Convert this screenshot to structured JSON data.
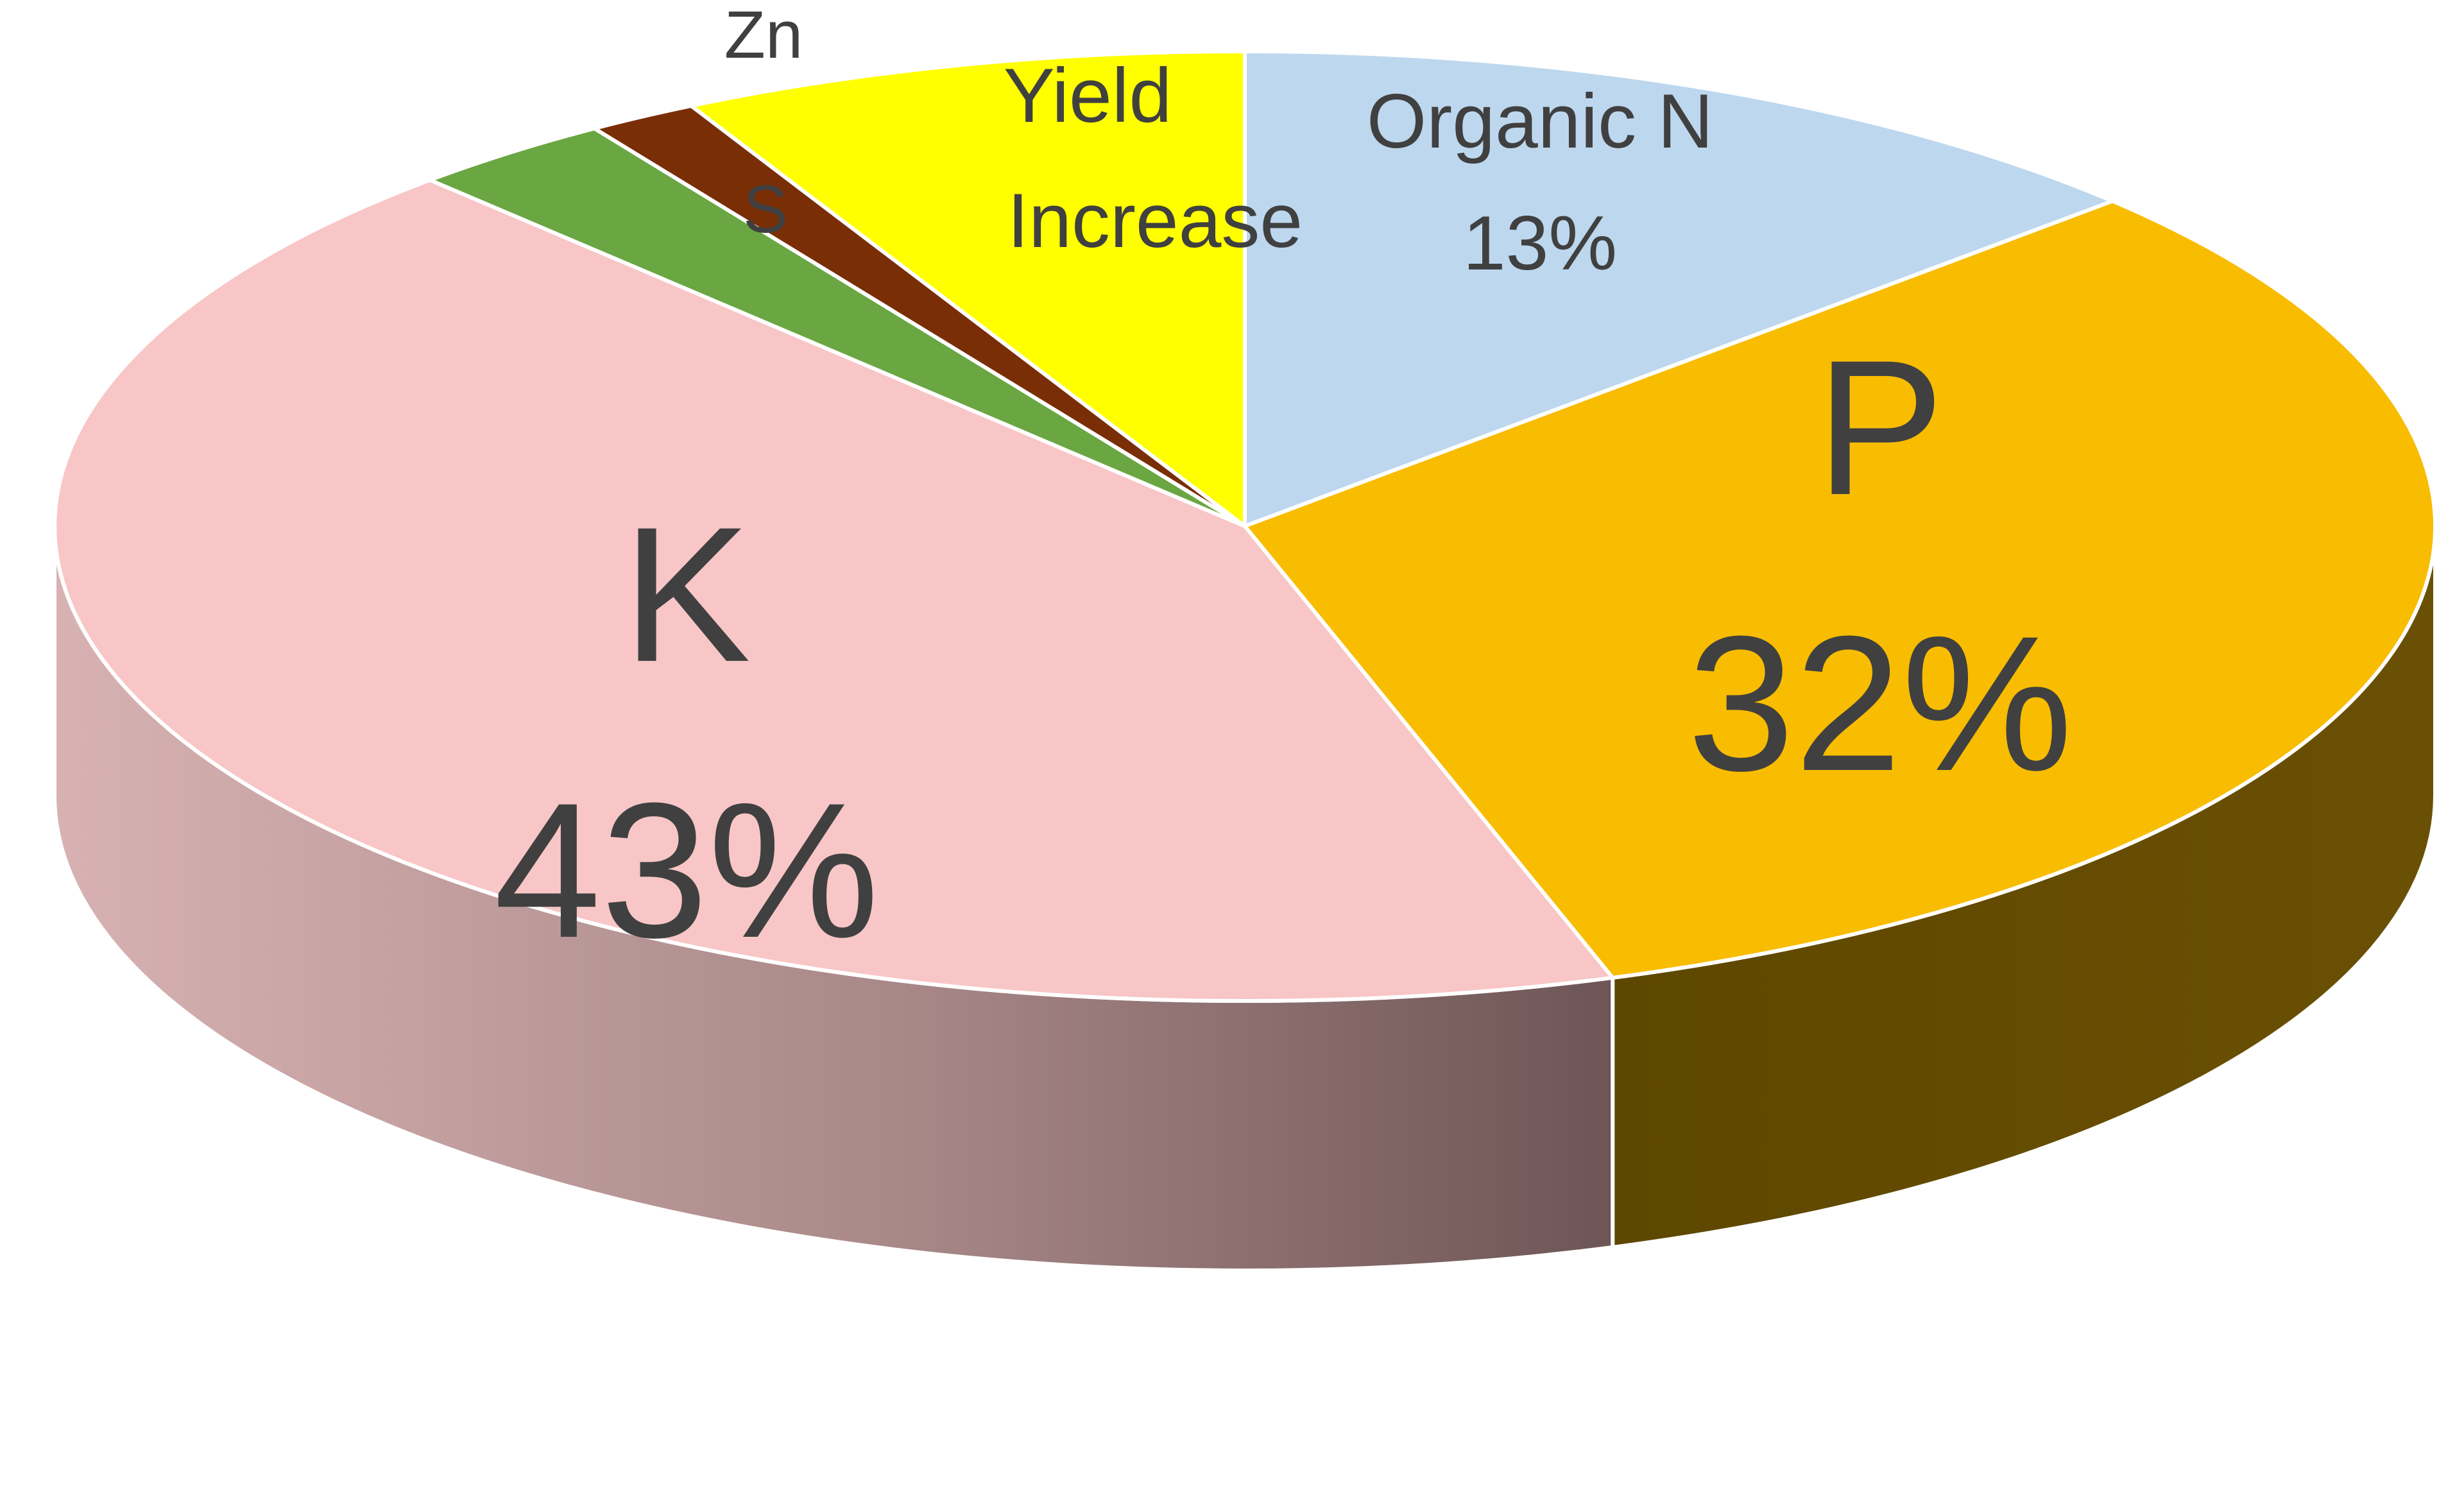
{
  "chart_data": {
    "type": "pie",
    "style": "3d",
    "title": "",
    "slices": [
      {
        "label": "Organic N",
        "value": 13,
        "value_label": "13%",
        "color": "#BDD7EE",
        "side_color": "#8FA9C0"
      },
      {
        "label": "P",
        "value": 32,
        "value_label": "32%",
        "color": "#F8BC00",
        "side_color": "#5E4700"
      },
      {
        "label": "K",
        "value": 43,
        "value_label": "43%",
        "color": "#F8C6C6",
        "side_color": "#A88787"
      },
      {
        "label": "S",
        "value": 2.8,
        "value_label": "",
        "color": "#6AA642",
        "side_color": "#3E6A24"
      },
      {
        "label": "Zn",
        "value": 1.5,
        "value_label": "",
        "color": "#7A2E06",
        "side_color": "#4A1A03"
      },
      {
        "label": "Yield Increase",
        "value": 7.7,
        "value_label": "",
        "color": "#FFFF00",
        "side_color": "#A6A600"
      }
    ]
  }
}
